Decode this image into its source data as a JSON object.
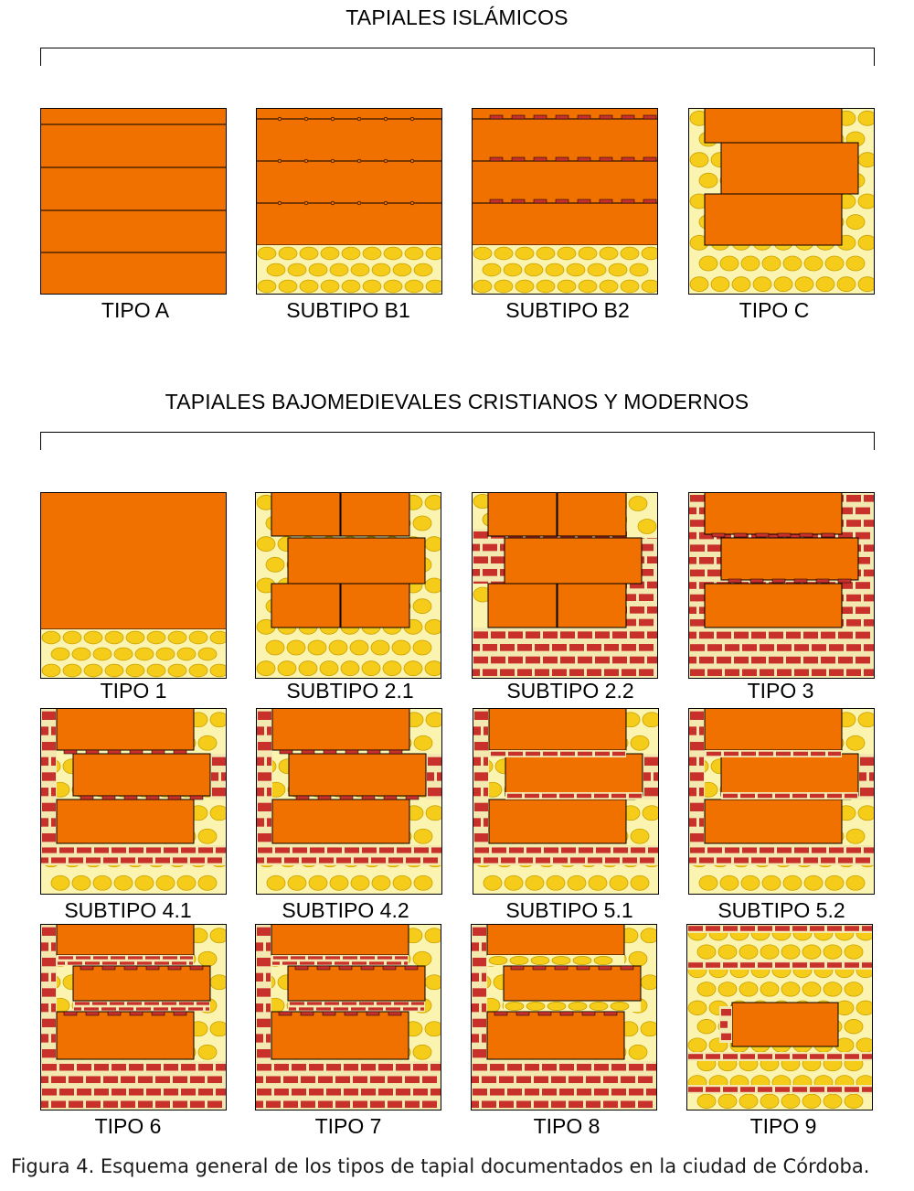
{
  "sections": [
    {
      "title": "TAPIALES ISLÁMICOS"
    },
    {
      "title": "TAPIALES BAJOMEDIEVALES CRISTIANOS Y MODERNOS"
    }
  ],
  "panels": [
    {
      "label": "TIPO A"
    },
    {
      "label": "SUBTIPO B1"
    },
    {
      "label": "SUBTIPO B2"
    },
    {
      "label": "TIPO C"
    },
    {
      "label": "TIPO 1"
    },
    {
      "label": "SUBTIPO 2.1"
    },
    {
      "label": "SUBTIPO 2.2"
    },
    {
      "label": "TIPO 3"
    },
    {
      "label": "SUBTIPO 4.1"
    },
    {
      "label": "SUBTIPO 4.2"
    },
    {
      "label": "SUBTIPO 5.1"
    },
    {
      "label": "SUBTIPO 5.2"
    },
    {
      "label": "TIPO 6"
    },
    {
      "label": "TIPO 7"
    },
    {
      "label": "TIPO 8"
    },
    {
      "label": "TIPO 9"
    }
  ],
  "caption": "Figura 4. Esquema general de los tipos de tapial documentados en la ciudad de Córdoba.",
  "colors": {
    "tapial": "#f07000",
    "stone_fill": "#f5cc1a",
    "stone_bg": "#fbf4b0",
    "brick": "#c8302c",
    "mortar": "#f3e9b0",
    "outline": "#000000"
  }
}
